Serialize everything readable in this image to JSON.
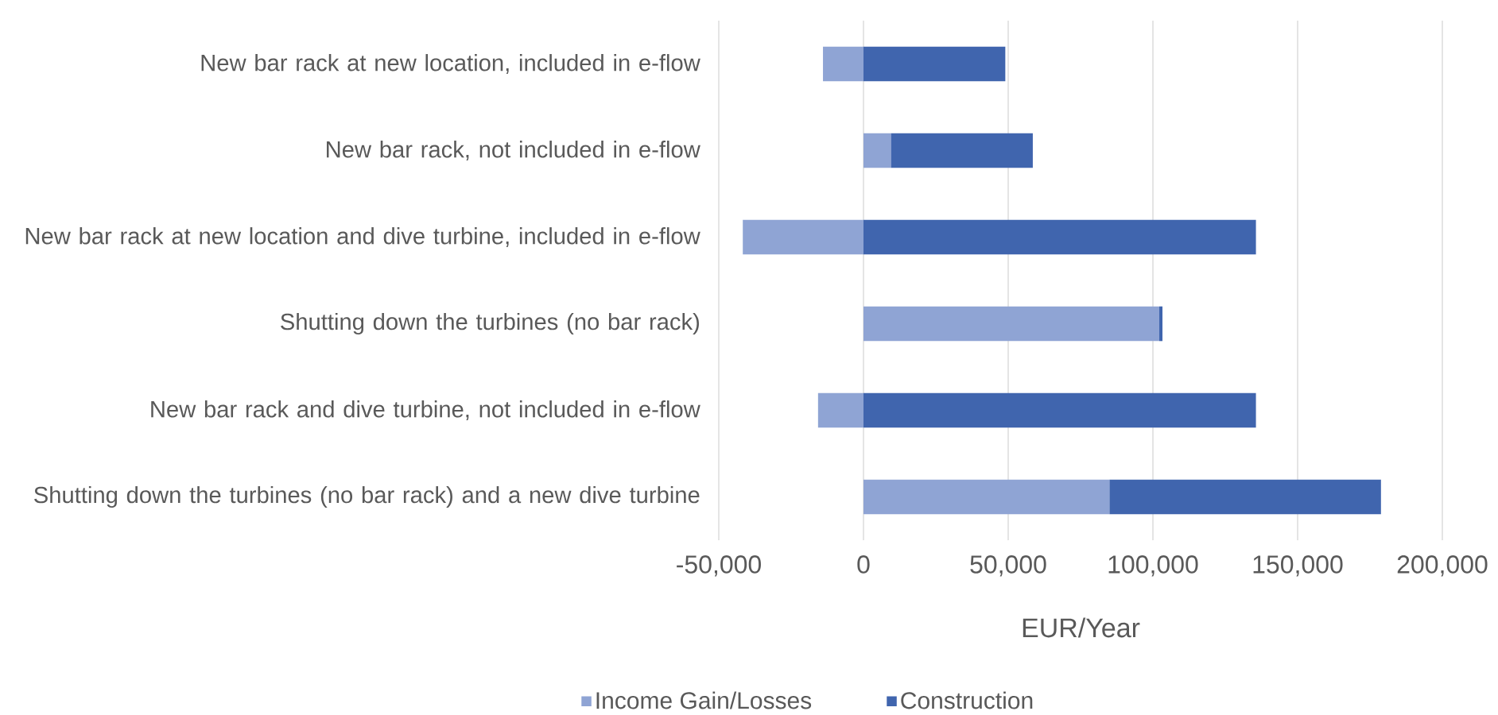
{
  "chart_data": {
    "type": "bar",
    "orientation": "horizontal",
    "stacked": true,
    "xlabel": "EUR/Year",
    "categories": [
      "New bar rack at new location, included in e-flow",
      "New bar rack, not included in e-flow",
      "New bar rack at new location and dive turbine, included in e-flow",
      "Shutting down the turbines (no bar rack)",
      "New bar rack and dive turbine, not included in e-flow",
      "Shutting down the turbines (no bar rack) and a new dive turbine"
    ],
    "series": [
      {
        "name": "Income Gain/Losses",
        "color": "#8fa4d4",
        "values": [
          -14000,
          9500,
          -41700,
          102200,
          -15700,
          85000
        ]
      },
      {
        "name": "Construction",
        "color": "#4065ae",
        "values": [
          49000,
          49000,
          135600,
          1100,
          135600,
          93800
        ]
      }
    ],
    "xlim": [
      -50000,
      200000
    ],
    "xticks": [
      {
        "value": -50000,
        "label": "-50,000"
      },
      0,
      {
        "value": 50000,
        "label": "50,000"
      },
      {
        "value": 100000,
        "label": "100,000"
      },
      {
        "value": 150000,
        "label": "150,000"
      },
      {
        "value": 200000,
        "label": "200,000"
      }
    ],
    "grid": "x",
    "legend": "bottom"
  }
}
